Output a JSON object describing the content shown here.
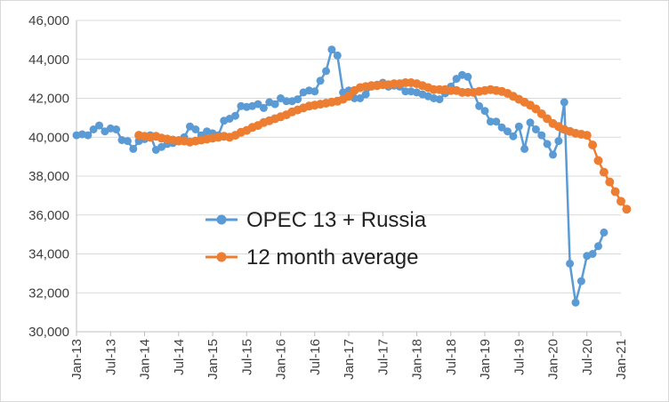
{
  "chart_data": {
    "type": "line",
    "title": "",
    "xlabel": "",
    "ylabel": "",
    "ylim": [
      30000,
      46000
    ],
    "y_ticks": [
      30000,
      32000,
      34000,
      36000,
      38000,
      40000,
      42000,
      44000,
      46000
    ],
    "y_tick_labels": [
      "30,000",
      "32,000",
      "34,000",
      "36,000",
      "38,000",
      "40,000",
      "42,000",
      "44,000",
      "46,000"
    ],
    "x_range": [
      "Jan-13",
      "Jan-21"
    ],
    "x_tick_labels": [
      "Jan-13",
      "Jul-13",
      "Jan-14",
      "Jul-14",
      "Jan-15",
      "Jul-15",
      "Jan-16",
      "Jul-16",
      "Jan-17",
      "Jul-17",
      "Jan-18",
      "Jul-18",
      "Jan-19",
      "Jul-19",
      "Jan-20",
      "Jul-20",
      "Jan-21"
    ],
    "grid": "horizontal",
    "legend_position": "center-left",
    "series": [
      {
        "name": "OPEC 13 + Russia",
        "color": "#5b9bd5",
        "x_start": "Jan-13",
        "values": [
          40100,
          40150,
          40100,
          40400,
          40600,
          40300,
          40450,
          40400,
          39850,
          39800,
          39400,
          39800,
          39900,
          40100,
          39350,
          39500,
          39650,
          39700,
          39850,
          40000,
          40550,
          40400,
          40100,
          40300,
          40200,
          40100,
          40850,
          40950,
          41100,
          41600,
          41550,
          41600,
          41700,
          41500,
          41800,
          41700,
          42000,
          41850,
          41850,
          41950,
          42300,
          42400,
          42350,
          42900,
          43400,
          44500,
          44200,
          42300,
          42400,
          42000,
          42000,
          42200,
          42600,
          42700,
          42800,
          42600,
          42650,
          42600,
          42350,
          42350,
          42300,
          42200,
          42100,
          42000,
          41950,
          42250,
          42600,
          43000,
          43200,
          43100,
          42300,
          41600,
          41350,
          40800,
          40800,
          40500,
          40300,
          40050,
          40550,
          39400,
          40750,
          40400,
          40100,
          39650,
          39100,
          39800,
          41800,
          33500,
          31500,
          32600,
          33900,
          34000,
          34400,
          35100
        ]
      },
      {
        "name": "12 month average",
        "color": "#ed7d31",
        "x_start": "Dec-13",
        "values": [
          40100,
          40050,
          40000,
          40050,
          39950,
          39900,
          39850,
          39800,
          39800,
          39750,
          39800,
          39850,
          39900,
          39950,
          40000,
          40050,
          40000,
          40100,
          40250,
          40350,
          40500,
          40600,
          40750,
          40850,
          40950,
          41050,
          41150,
          41300,
          41400,
          41500,
          41600,
          41650,
          41700,
          41750,
          41800,
          41850,
          41950,
          42100,
          42400,
          42550,
          42600,
          42650,
          42650,
          42700,
          42700,
          42750,
          42750,
          42800,
          42800,
          42750,
          42650,
          42550,
          42450,
          42450,
          42450,
          42400,
          42400,
          42300,
          42300,
          42300,
          42350,
          42400,
          42450,
          42400,
          42350,
          42250,
          42100,
          41950,
          41800,
          41650,
          41450,
          41200,
          40950,
          40700,
          40550,
          40400,
          40300,
          40200,
          40150,
          40100,
          39600,
          38800,
          38200,
          37700,
          37200,
          36700,
          36300
        ]
      }
    ]
  }
}
